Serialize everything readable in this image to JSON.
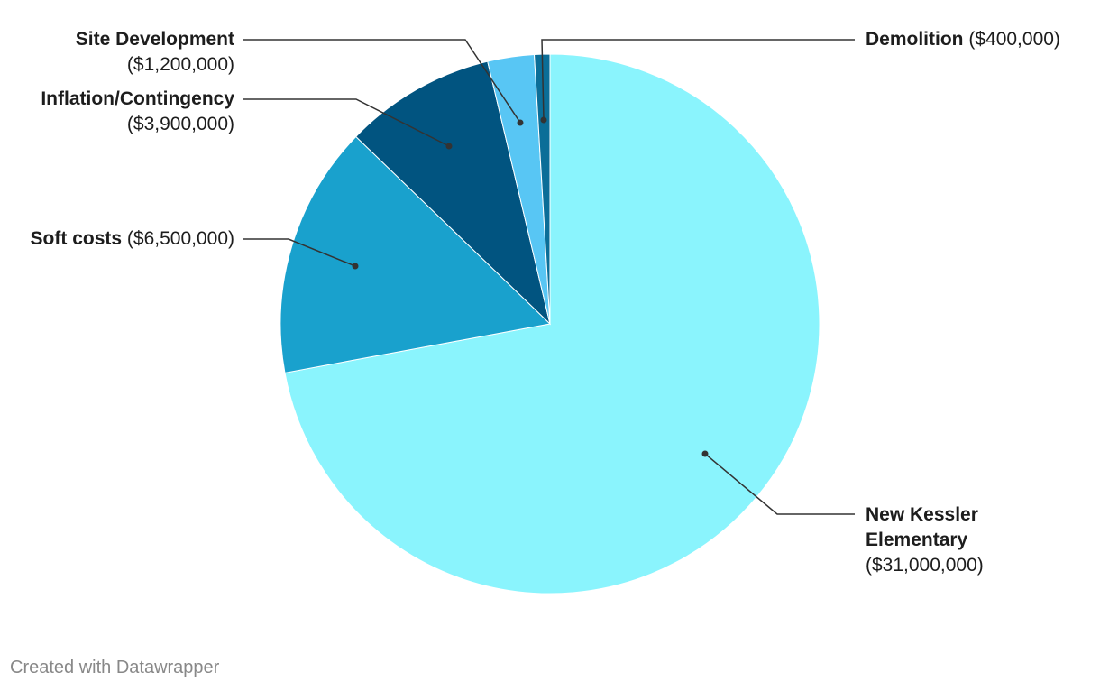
{
  "chart_data": {
    "type": "pie",
    "slices": [
      {
        "label": "New Kessler Elementary",
        "value_label": "($31,000,000)",
        "value": 31000000,
        "color": "#8af4fd"
      },
      {
        "label": "Soft costs",
        "value_label": "($6,500,000)",
        "value": 6500000,
        "color": "#19a1cd"
      },
      {
        "label": "Inflation/Contingency",
        "value_label": "($3,900,000)",
        "value": 3900000,
        "color": "#015480"
      },
      {
        "label": "Site Development",
        "value_label": "($1,200,000)",
        "value": 1200000,
        "color": "#58c6f4"
      },
      {
        "label": "Demolition",
        "value_label": "($400,000)",
        "value": 400000,
        "color": "#0b6e98"
      }
    ]
  },
  "credit": "Created with Datawrapper"
}
